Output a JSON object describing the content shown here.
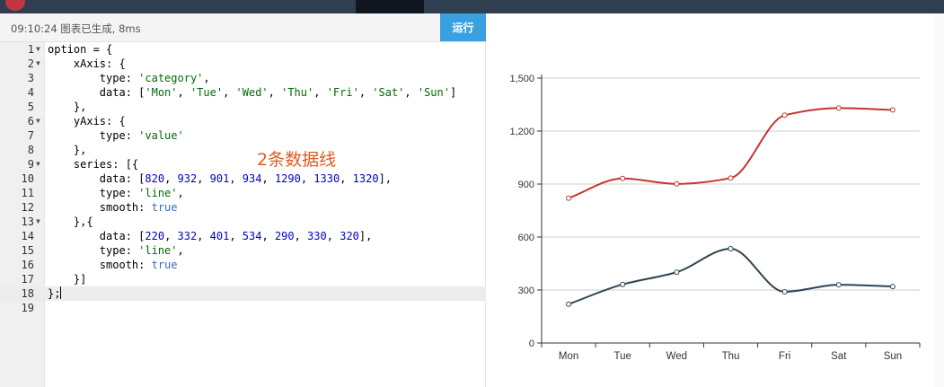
{
  "editor": {
    "status": "09:10:24  图表已生成, 8ms",
    "run_label": "运行",
    "annotation": "2条数据线",
    "line_numbers": [
      "1",
      "2",
      "3",
      "4",
      "5",
      "6",
      "7",
      "8",
      "9",
      "10",
      "11",
      "12",
      "13",
      "14",
      "15",
      "16",
      "17",
      "18",
      "19"
    ]
  },
  "chart_data": {
    "type": "line",
    "categories": [
      "Mon",
      "Tue",
      "Wed",
      "Thu",
      "Fri",
      "Sat",
      "Sun"
    ],
    "series": [
      {
        "values": [
          820,
          932,
          901,
          934,
          1290,
          1330,
          1320
        ],
        "color": "#c23531"
      },
      {
        "values": [
          220,
          332,
          401,
          534,
          290,
          330,
          320
        ],
        "color": "#2f4554"
      }
    ],
    "smooth": true,
    "ylim": [
      0,
      1500
    ],
    "yticks": [
      "0",
      "300",
      "600",
      "900",
      "1,200",
      "1,500"
    ],
    "grid": true,
    "title": "",
    "xlabel": "",
    "ylabel": ""
  }
}
